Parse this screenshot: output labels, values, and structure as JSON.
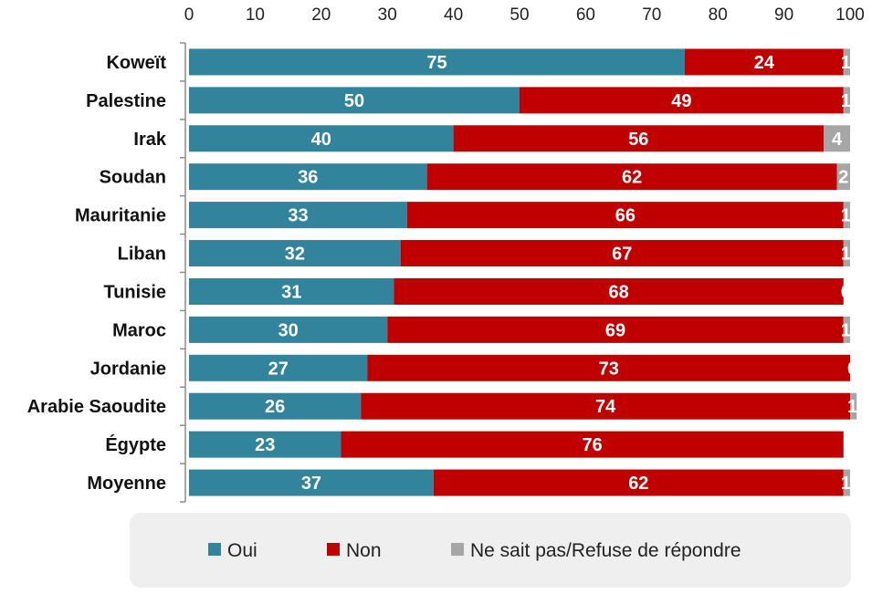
{
  "chart_data": {
    "type": "bar",
    "orientation": "horizontal",
    "stacked": true,
    "categories": [
      "Koweït",
      "Palestine",
      "Irak",
      "Soudan",
      "Mauritanie",
      "Liban",
      "Tunisie",
      "Maroc",
      "Jordanie",
      "Arabie Saoudite",
      "Égypte",
      "Moyenne"
    ],
    "series": [
      {
        "name": "Oui",
        "color": "#31849B",
        "values": [
          75,
          50,
          40,
          36,
          33,
          32,
          31,
          30,
          27,
          26,
          23,
          37
        ]
      },
      {
        "name": "Non",
        "color": "#C00000",
        "values": [
          24,
          49,
          56,
          62,
          66,
          67,
          68,
          69,
          73,
          74,
          76,
          62
        ]
      },
      {
        "name": "Ne sait pas/Refuse de répondre",
        "color": "#A6A6A6",
        "values": [
          1,
          1,
          4,
          2,
          1,
          1,
          0,
          1,
          0,
          1,
          null,
          1
        ]
      }
    ],
    "xlim": [
      0,
      100
    ],
    "xticks": [
      "0",
      "10",
      "20",
      "30",
      "40",
      "50",
      "60",
      "70",
      "80",
      "90",
      "100"
    ],
    "x_axis_position": "top",
    "grid": false,
    "legend_position": "bottom"
  }
}
